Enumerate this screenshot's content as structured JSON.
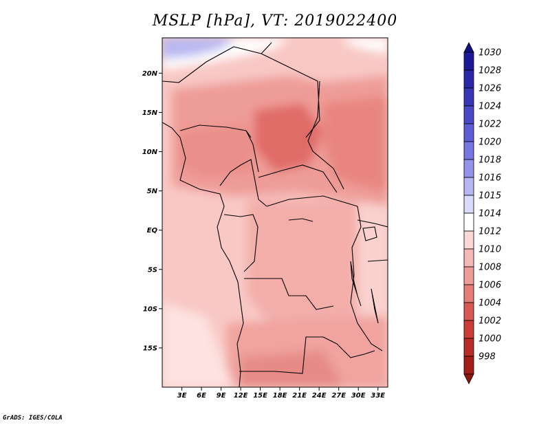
{
  "title": "MSLP [hPa], VT: 2019022400",
  "credit": "GrADS: IGES/COLA",
  "chart_data": {
    "type": "heatmap",
    "variable": "MSLP",
    "units": "hPa",
    "valid_time": "2019022400",
    "lon_range": [
      0,
      34.5
    ],
    "lat_range": [
      -20,
      24.5
    ],
    "lat_ticks": [
      {
        "value": 20,
        "label": "20N"
      },
      {
        "value": 15,
        "label": "15N"
      },
      {
        "value": 10,
        "label": "10N"
      },
      {
        "value": 5,
        "label": "5N"
      },
      {
        "value": 0,
        "label": "EQ"
      },
      {
        "value": -5,
        "label": "5S"
      },
      {
        "value": -10,
        "label": "10S"
      },
      {
        "value": -15,
        "label": "15S"
      }
    ],
    "lon_ticks": [
      {
        "value": 3,
        "label": "3E"
      },
      {
        "value": 6,
        "label": "6E"
      },
      {
        "value": 9,
        "label": "9E"
      },
      {
        "value": 12,
        "label": "12E"
      },
      {
        "value": 15,
        "label": "15E"
      },
      {
        "value": 18,
        "label": "18E"
      },
      {
        "value": 21,
        "label": "21E"
      },
      {
        "value": 24,
        "label": "24E"
      },
      {
        "value": 27,
        "label": "27E"
      },
      {
        "value": 30,
        "label": "30E"
      },
      {
        "value": 33,
        "label": "33E"
      }
    ],
    "colorbar": [
      {
        "label": "1030",
        "color": "#1e1a96"
      },
      {
        "label": "1028",
        "color": "#2a28a8"
      },
      {
        "label": "1026",
        "color": "#3837b8"
      },
      {
        "label": "1024",
        "color": "#4a49c8"
      },
      {
        "label": "1022",
        "color": "#5d5dd6"
      },
      {
        "label": "1020",
        "color": "#7776e2"
      },
      {
        "label": "1018",
        "color": "#9594ec"
      },
      {
        "label": "1016",
        "color": "#b7b7f4"
      },
      {
        "label": "1015",
        "color": "#dadafa"
      },
      {
        "label": "1014",
        "color": "#ffffff"
      },
      {
        "label": "1012",
        "color": "#fbd8d6"
      },
      {
        "label": "1010",
        "color": "#f5b8b5"
      },
      {
        "label": "1008",
        "color": "#ee9c98"
      },
      {
        "label": "1006",
        "color": "#e47c78"
      },
      {
        "label": "1004",
        "color": "#d95a55"
      },
      {
        "label": "1002",
        "color": "#cc3d37"
      },
      {
        "label": "1000",
        "color": "#b72c26"
      },
      {
        "label": "998",
        "color": "#a21f19"
      }
    ],
    "colorbar_extremes": {
      "top_color": "#14107e",
      "bottom_color": "#8e1510"
    }
  }
}
